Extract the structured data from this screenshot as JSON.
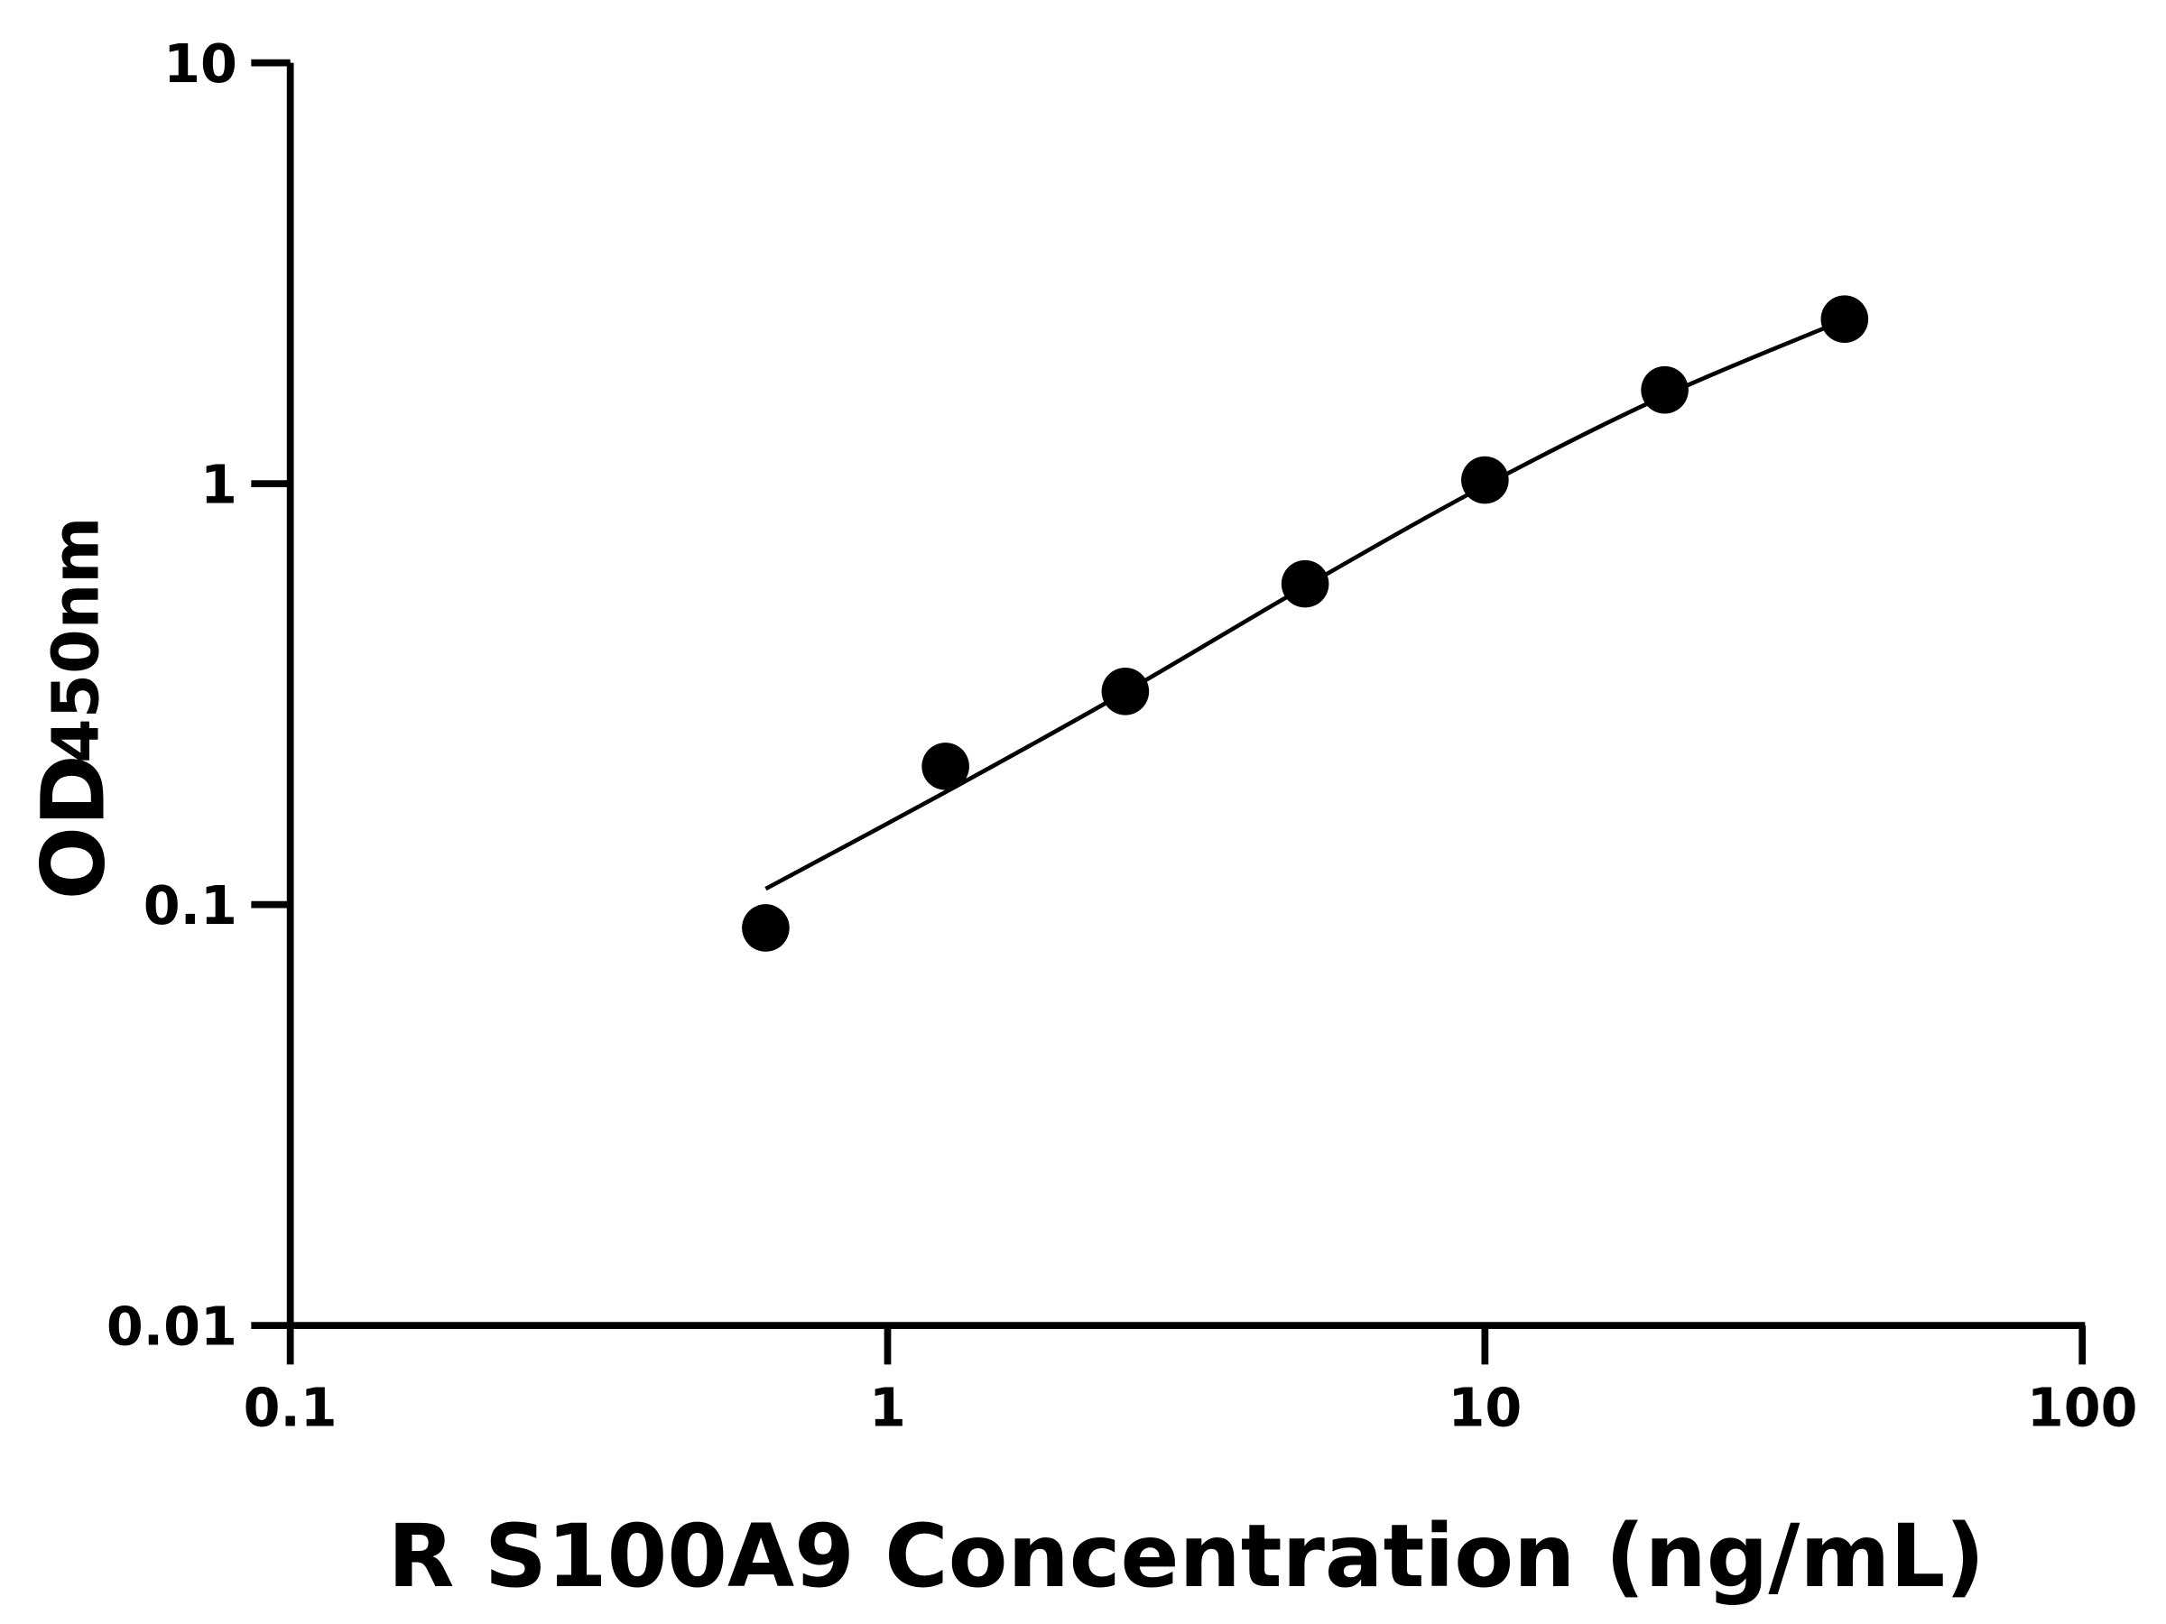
{
  "chart_data": {
    "type": "scatter",
    "xlabel": "R S100A9 Concentration (ng/mL)",
    "ylabel_main": "OD",
    "ylabel_sub": "450nm",
    "x_scale": "log",
    "y_scale": "log",
    "xlim": [
      0.1,
      100
    ],
    "ylim": [
      0.01,
      10
    ],
    "x_ticks": [
      "0.1",
      "1",
      "10",
      "100"
    ],
    "y_ticks": [
      "0.01",
      "0.1",
      "1",
      "10"
    ],
    "grid": false,
    "points": {
      "x": [
        0.625,
        1.25,
        2.5,
        5,
        10,
        20,
        40
      ],
      "y": [
        0.088,
        0.213,
        0.321,
        0.578,
        1.02,
        1.67,
        2.46
      ]
    },
    "fit_curve": {
      "x": [
        0.625,
        1.25,
        2.5,
        5,
        10,
        20,
        40
      ],
      "y": [
        0.109,
        0.185,
        0.32,
        0.57,
        0.99,
        1.62,
        2.45
      ]
    },
    "colors": {
      "marker": "#000000",
      "line": "#000000",
      "axis": "#000000"
    }
  }
}
